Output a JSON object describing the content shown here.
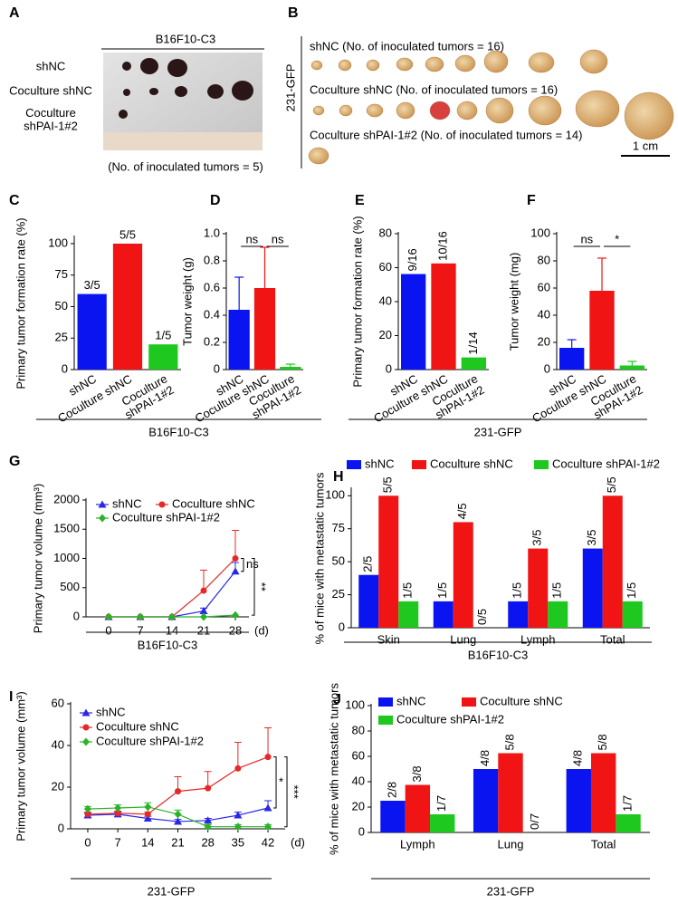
{
  "figure": {
    "panel_a": {
      "label": "A",
      "title": "B16F10-C3",
      "rows": [
        "shNC",
        "Coculture shNC",
        "Coculture shPAI-1#2"
      ],
      "note": "(No. of inoculated tumors = 5)"
    },
    "panel_b": {
      "label": "B",
      "side_label": "231-GFP",
      "rows": [
        "shNC (No. of inoculated tumors = 16)",
        "Coculture shNC (No. of inoculated tumors = 16)",
        "Coculture shPAI-1#2 (No. of inoculated tumors = 14)"
      ],
      "scale_bar": "1 cm"
    }
  },
  "chart_data": [
    {
      "label": "C",
      "type": "bar",
      "ylabel": "Primary tumor formation rate (%)",
      "categories": [
        "shNC",
        "Coculture shNC",
        "Coculture shPAI-1#2"
      ],
      "values": [
        60,
        100,
        20
      ],
      "value_labels": [
        "3/5",
        "5/5",
        "1/5"
      ],
      "colors": [
        "#0a14f0",
        "#f01414",
        "#1ec81e"
      ],
      "ylim": [
        0,
        105
      ],
      "yticks": [
        0,
        25,
        50,
        75,
        100
      ],
      "group_label": "B16F10-C3"
    },
    {
      "label": "D",
      "type": "bar",
      "ylabel": "Tumor weight (g)",
      "categories": [
        "shNC",
        "Coculture shNC",
        "Coculture shPAI-1#2"
      ],
      "values": [
        0.44,
        0.6,
        0.02
      ],
      "errors": [
        0.24,
        0.3,
        0.02
      ],
      "colors": [
        "#0a14f0",
        "#f01414",
        "#1ec81e"
      ],
      "ylim": [
        0,
        1
      ],
      "yticks": [
        0,
        0.2,
        0.4,
        0.6,
        0.8,
        {
          "value": 1,
          "label": "1.0"
        }
      ],
      "significance": [
        "ns",
        "ns"
      ]
    },
    {
      "label": "E",
      "type": "bar",
      "ylabel": "Primary tumor formation rate (%)",
      "categories": [
        "shNC",
        "Coculture shNC",
        "Coculture shPAI-1#2"
      ],
      "values": [
        56.25,
        62.5,
        7.14
      ],
      "value_labels": [
        "9/16",
        "10/16",
        "1/14"
      ],
      "colors": [
        "#0a14f0",
        "#f01414",
        "#1ec81e"
      ],
      "ylim": [
        0,
        80
      ],
      "yticks": [
        0,
        20,
        40,
        60,
        80
      ],
      "group_label": "231-GFP"
    },
    {
      "label": "F",
      "type": "bar",
      "ylabel": "Tumor weight (mg)",
      "categories": [
        "shNC",
        "Coculture shNC",
        "Coculture shPAI-1#2"
      ],
      "values": [
        16,
        58,
        3
      ],
      "errors": [
        6,
        24,
        3
      ],
      "colors": [
        "#0a14f0",
        "#f01414",
        "#1ec81e"
      ],
      "ylim": [
        0,
        100
      ],
      "yticks": [
        0,
        20,
        40,
        60,
        80,
        100
      ],
      "significance": [
        "ns",
        "*"
      ]
    },
    {
      "label": "G",
      "type": "line",
      "ylabel": "Primary tumor volume (mm³)",
      "xlabel": "(d)",
      "x": [
        0,
        7,
        14,
        21,
        28
      ],
      "xlim": [
        -5,
        31
      ],
      "xticks": [
        0,
        7,
        14,
        21,
        28
      ],
      "ylim": [
        0,
        2000
      ],
      "yticks": [
        0,
        500,
        1000,
        1500,
        2000
      ],
      "series": [
        {
          "name": "shNC",
          "color": "#2828e6",
          "marker": "triangle",
          "values": [
            0,
            0,
            0,
            100,
            780
          ],
          "errors": [
            0,
            0,
            0,
            50,
            150
          ]
        },
        {
          "name": "Coculture shNC",
          "color": "#e62828",
          "marker": "circle",
          "values": [
            0,
            0,
            0,
            450,
            1000
          ],
          "errors": [
            0,
            0,
            0,
            350,
            480
          ]
        },
        {
          "name": "Coculture shPAI-1#2",
          "color": "#28b428",
          "marker": "diamond",
          "values": [
            0,
            0,
            0,
            0,
            30
          ]
        }
      ],
      "significance": [
        "ns",
        "**"
      ],
      "group_label": "B16F10-C3"
    },
    {
      "label": "H",
      "type": "grouped_bar",
      "ylabel": "% of mice with metastatic tumors",
      "categories": [
        "Skin",
        "Lung",
        "Lymph",
        "Total"
      ],
      "ylim": [
        0,
        105
      ],
      "yticks": [
        0,
        25,
        50,
        75,
        100
      ],
      "series": [
        {
          "name": "shNC",
          "color": "#0a14f0",
          "values": [
            40,
            20,
            20,
            60
          ],
          "value_labels": [
            "2/5",
            "1/5",
            "1/5",
            "3/5"
          ]
        },
        {
          "name": "Coculture shNC",
          "color": "#f01414",
          "values": [
            100,
            80,
            60,
            100
          ],
          "value_labels": [
            "5/5",
            "4/5",
            "3/5",
            "5/5"
          ]
        },
        {
          "name": "Coculture shPAI-1#2",
          "color": "#1ec81e",
          "values": [
            20,
            0,
            20,
            20
          ],
          "value_labels": [
            "1/5",
            "0/5",
            "1/5",
            "1/5"
          ]
        }
      ],
      "group_label": "B16F10-C3"
    },
    {
      "label": "I",
      "type": "line",
      "ylabel": "Primary tumor volume (mm³)",
      "xlabel": "(d)",
      "x": [
        0,
        7,
        14,
        21,
        28,
        35,
        42
      ],
      "xlim": [
        -4,
        46
      ],
      "xticks": [
        0,
        7,
        14,
        21,
        28,
        35,
        42
      ],
      "ylim": [
        0,
        60
      ],
      "yticks": [
        0,
        20,
        40,
        60
      ],
      "series": [
        {
          "name": "shNC",
          "color": "#2828e6",
          "marker": "triangle",
          "values": [
            6.5,
            7,
            5,
            3.5,
            4,
            6.5,
            10
          ],
          "errors": [
            1,
            1,
            1,
            1,
            1,
            1.5,
            3.5
          ]
        },
        {
          "name": "Coculture shNC",
          "color": "#e62828",
          "marker": "circle",
          "values": [
            7,
            7.5,
            7,
            18,
            19.5,
            29,
            34.5
          ],
          "errors": [
            1,
            1,
            1,
            7,
            8,
            12.5,
            14
          ]
        },
        {
          "name": "Coculture shPAI-1#2",
          "color": "#28b428",
          "marker": "diamond",
          "values": [
            9.5,
            10,
            10.5,
            7,
            1,
            1,
            1
          ],
          "errors": [
            1.2,
            1.5,
            2,
            2,
            1,
            1,
            1
          ]
        }
      ],
      "significance": [
        "*",
        "***"
      ],
      "group_label": "231-GFP"
    },
    {
      "label": "J",
      "type": "grouped_bar",
      "ylabel": "% of mice with metastatic tumors",
      "categories": [
        "Lymph",
        "Lung",
        "Total"
      ],
      "ylim": [
        0,
        100
      ],
      "yticks": [
        0,
        20,
        40,
        60,
        80,
        100
      ],
      "series": [
        {
          "name": "shNC",
          "color": "#0a14f0",
          "values": [
            25,
            50,
            50
          ],
          "value_labels": [
            "2/8",
            "4/8",
            "4/8"
          ]
        },
        {
          "name": "Coculture shNC",
          "color": "#f01414",
          "values": [
            37.5,
            62.5,
            62.5
          ],
          "value_labels": [
            "3/8",
            "5/8",
            "5/8"
          ]
        },
        {
          "name": "Coculture shPAI-1#2",
          "color": "#1ec81e",
          "values": [
            14.29,
            0,
            14.29
          ],
          "value_labels": [
            "1/7",
            "0/7",
            "1/7"
          ]
        }
      ],
      "group_label": "231-GFP"
    }
  ]
}
